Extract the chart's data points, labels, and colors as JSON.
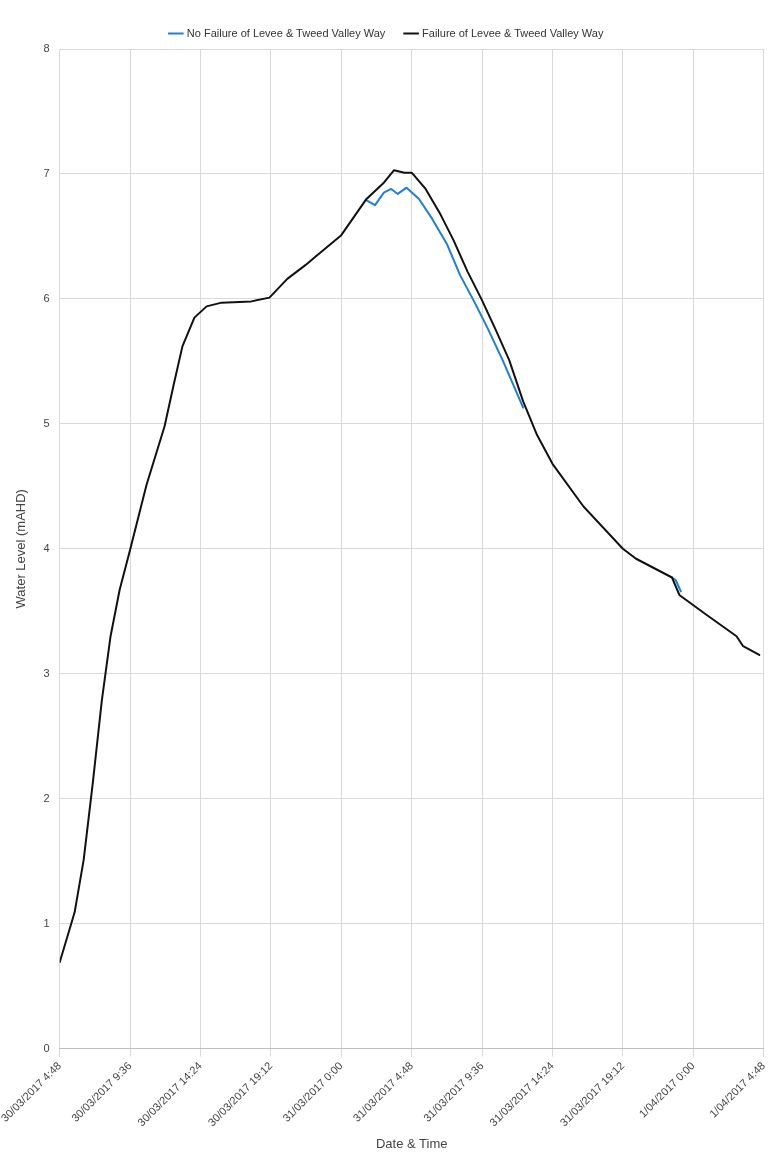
{
  "chart_data": {
    "type": "line",
    "xlabel": "Date & Time",
    "ylabel": "Water Level (mAHD)",
    "xlim": [
      "2017-03-30T04:48",
      "2017-04-01T04:48"
    ],
    "ylim": [
      0,
      8
    ],
    "xticks": [
      {
        "value": "2017-03-30T04:48",
        "label": "30/03/2017 4:48"
      },
      {
        "value": "2017-03-30T09:36",
        "label": "30/03/2017 9:36"
      },
      {
        "value": "2017-03-30T14:24",
        "label": "30/03/2017 14:24"
      },
      {
        "value": "2017-03-30T19:12",
        "label": "30/03/2017 19:12"
      },
      {
        "value": "2017-03-31T00:00",
        "label": "31/03/2017 0:00"
      },
      {
        "value": "2017-03-31T04:48",
        "label": "31/03/2017 4:48"
      },
      {
        "value": "2017-03-31T09:36",
        "label": "31/03/2017 9:36"
      },
      {
        "value": "2017-03-31T14:24",
        "label": "31/03/2017 14:24"
      },
      {
        "value": "2017-03-31T19:12",
        "label": "31/03/2017 19:12"
      },
      {
        "value": "2017-04-01T00:00",
        "label": "1/04/2017 0:00"
      },
      {
        "value": "2017-04-01T04:48",
        "label": "1/04/2017 4:48"
      }
    ],
    "yticks": [
      0,
      1,
      2,
      3,
      4,
      5,
      6,
      7,
      8
    ],
    "grid": true,
    "legend": "top",
    "marker": "none",
    "line_style": "solid",
    "series": [
      {
        "name": "No Failure of Levee & Tweed Valley Way",
        "color": "#1f7fd4",
        "x": [
          "2017-03-31T01:42",
          "2017-03-31T02:18",
          "2017-03-31T02:54",
          "2017-03-31T03:24",
          "2017-03-31T03:51",
          "2017-03-31T04:27",
          "2017-03-31T05:18",
          "2017-03-31T06:12",
          "2017-03-31T07:12",
          "2017-03-31T08:06",
          "2017-03-31T09:06",
          "2017-03-31T10:00",
          "2017-03-31T11:00",
          "2017-03-31T12:24",
          "2017-03-31T16:30",
          "2017-03-31T22:33",
          "2017-03-31T22:48",
          "2017-03-31T23:09"
        ],
        "values": [
          6.79,
          6.75,
          6.85,
          6.88,
          6.84,
          6.89,
          6.8,
          6.64,
          6.44,
          6.19,
          5.97,
          5.76,
          5.51,
          5.13,
          null,
          3.77,
          3.75,
          3.66
        ]
      },
      {
        "name": "Failure of Levee & Tweed Valley Way",
        "color": "#111111",
        "x": [
          "2017-03-30T04:48",
          "2017-03-30T05:49",
          "2017-03-30T06:26",
          "2017-03-30T07:03",
          "2017-03-30T07:40",
          "2017-03-30T08:16",
          "2017-03-30T08:53",
          "2017-03-30T09:37",
          "2017-03-30T10:43",
          "2017-03-30T11:57",
          "2017-03-30T12:34",
          "2017-03-30T13:10",
          "2017-03-30T13:59",
          "2017-03-30T14:49",
          "2017-03-30T15:50",
          "2017-03-30T17:52",
          "2017-03-30T19:06",
          "2017-03-30T20:19",
          "2017-03-30T21:33",
          "2017-03-30T22:46",
          "2017-03-31T00:00",
          "2017-03-31T01:43",
          "2017-03-31T02:54",
          "2017-03-31T03:36",
          "2017-03-31T04:18",
          "2017-03-31T04:48",
          "2017-03-31T05:45",
          "2017-03-31T06:42",
          "2017-03-31T07:39",
          "2017-03-31T08:36",
          "2017-03-31T09:33",
          "2017-03-31T10:30",
          "2017-03-31T11:27",
          "2017-03-31T12:24",
          "2017-03-31T13:21",
          "2017-03-31T14:24",
          "2017-03-31T16:30",
          "2017-03-31T19:12",
          "2017-03-31T20:06",
          "2017-03-31T22:33",
          "2017-03-31T23:03",
          "2017-04-01T00:48",
          "2017-04-01T02:57",
          "2017-04-01T03:24",
          "2017-04-01T04:30"
        ],
        "values": [
          0.69,
          1.09,
          1.51,
          2.12,
          2.78,
          3.3,
          3.67,
          4.0,
          4.51,
          4.98,
          5.31,
          5.62,
          5.85,
          5.94,
          5.97,
          5.98,
          6.01,
          6.16,
          6.27,
          6.39,
          6.51,
          6.8,
          6.93,
          7.03,
          7.01,
          7.01,
          6.88,
          6.69,
          6.47,
          6.22,
          6.0,
          5.76,
          5.51,
          5.18,
          4.91,
          4.68,
          4.34,
          4.0,
          3.92,
          3.77,
          3.63,
          3.48,
          3.3,
          3.22,
          3.15
        ]
      }
    ]
  }
}
